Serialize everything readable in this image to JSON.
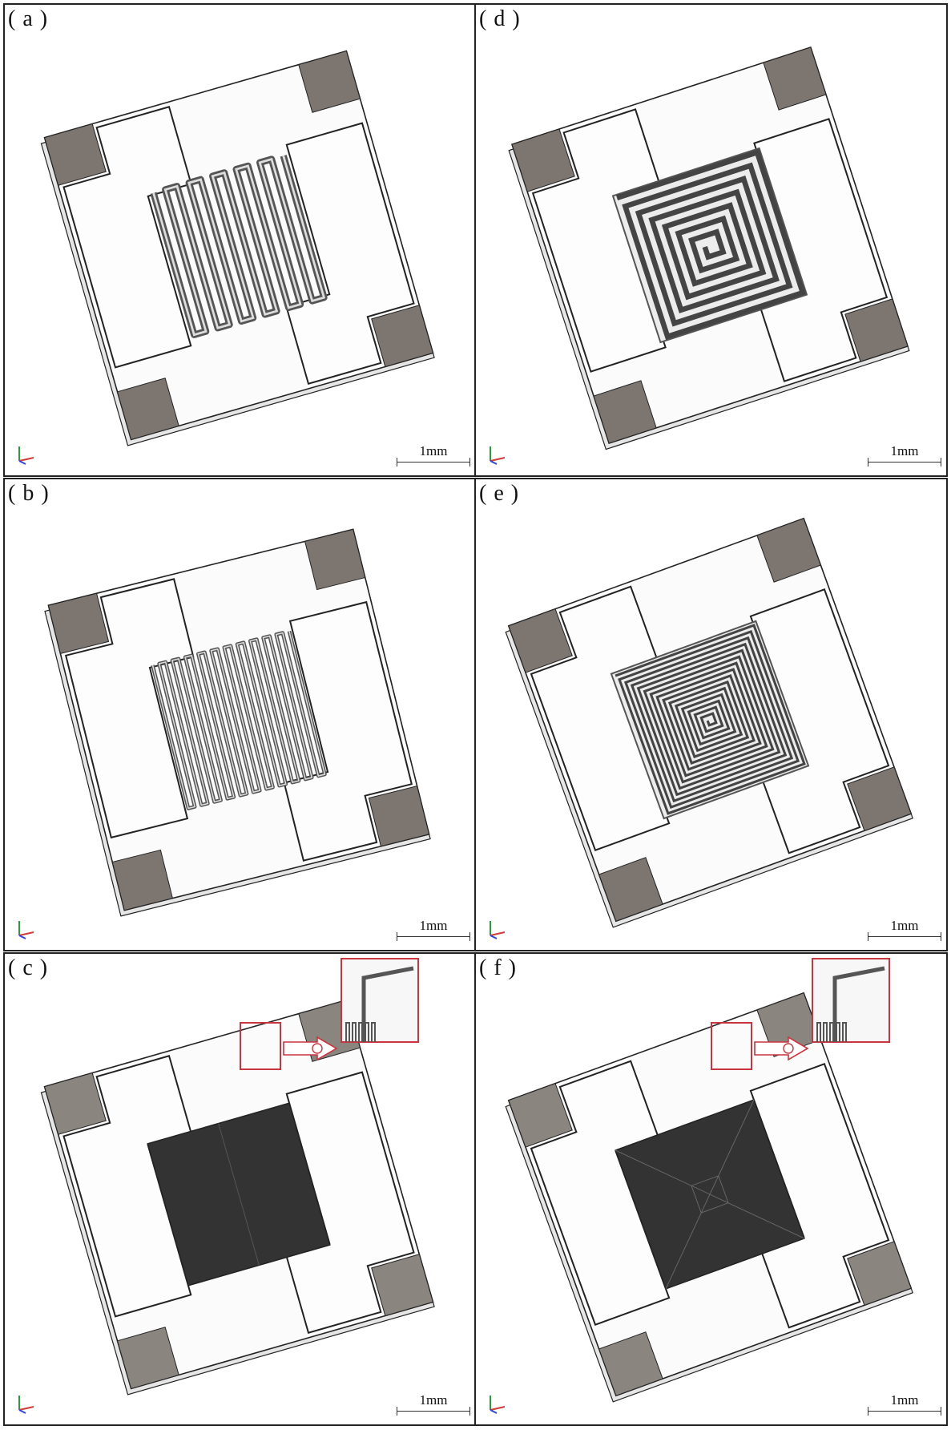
{
  "panels": [
    {
      "label": "( a )",
      "scale": "1mm",
      "pattern": "meander",
      "turns": 12,
      "rot": -16,
      "tint": "#7d7570",
      "inset": false
    },
    {
      "label": "( d )",
      "scale": "1mm",
      "pattern": "spiral",
      "turns": 7,
      "rot": -18,
      "tint": "#7d7570",
      "inset": false
    },
    {
      "label": "( b )",
      "scale": "1mm",
      "pattern": "meander",
      "turns": 22,
      "rot": -14,
      "tint": "#7d7570",
      "inset": false
    },
    {
      "label": "( e )",
      "scale": "1mm",
      "pattern": "spiral",
      "turns": 15,
      "rot": -20,
      "tint": "#7d7570",
      "inset": false
    },
    {
      "label": "( c )",
      "scale": "1mm",
      "pattern": "dense",
      "turns": 0,
      "rot": -16,
      "tint": "#8b8580",
      "inset": true
    },
    {
      "label": "( f )",
      "scale": "1mm",
      "pattern": "densespiral",
      "turns": 0,
      "rot": -20,
      "tint": "#8b8580",
      "inset": true
    }
  ],
  "colors": {
    "pad": "#7d7570",
    "trace": "#555",
    "inset": "#c9353f",
    "outline": "#222"
  }
}
